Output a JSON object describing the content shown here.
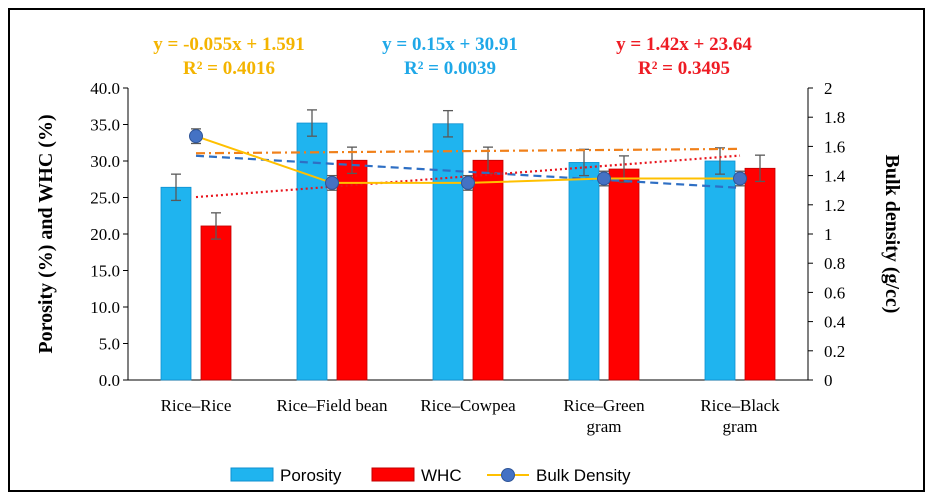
{
  "chart_data": {
    "type": "bar",
    "categories": [
      [
        "Rice–Rice"
      ],
      [
        "Rice–Field bean"
      ],
      [
        "Rice–Cowpea"
      ],
      [
        "Rice–Green",
        "gram"
      ],
      [
        "Rice–Black",
        "gram"
      ]
    ],
    "series": [
      {
        "name": "Porosity",
        "axis": "left",
        "color": "#1fb4ef",
        "values": [
          26.4,
          35.2,
          35.1,
          29.8,
          30.0
        ],
        "errors": [
          1.8,
          1.8,
          1.8,
          1.8,
          1.8
        ]
      },
      {
        "name": "WHC",
        "axis": "left",
        "color": "#ff0000",
        "values": [
          21.1,
          30.1,
          30.1,
          28.9,
          29.0
        ],
        "errors": [
          1.8,
          1.8,
          1.8,
          1.8,
          1.8
        ]
      }
    ],
    "line_series": {
      "name": "Bulk Density",
      "axis": "right",
      "line_color": "#ffc000",
      "marker_color": "#4472c4",
      "values": [
        1.67,
        1.35,
        1.35,
        1.38,
        1.38
      ],
      "errors": [
        0.05,
        0.05,
        0.05,
        0.05,
        0.05
      ]
    },
    "trendlines": [
      {
        "series": "Bulk Density",
        "axis": "right",
        "color": "#2e6fc4",
        "style": "dashed",
        "slope": -0.055,
        "intercept": 1.591,
        "equation": "y = -0.055x + 1.591",
        "r2": "R² = 0.4016",
        "label_color": "#f4b400"
      },
      {
        "series": "Porosity",
        "axis": "left",
        "color": "#f0801a",
        "style": "dashdot",
        "slope": 0.15,
        "intercept": 30.91,
        "equation": "y = 0.15x + 30.91",
        "r2": "R² = 0.0039",
        "label_color": "#1fa8e8"
      },
      {
        "series": "WHC",
        "axis": "left",
        "color": "#e8141c",
        "style": "dotted",
        "slope": 1.42,
        "intercept": 23.64,
        "equation": "y = 1.42x + 23.64",
        "r2": "R² = 0.3495",
        "label_color": "#ee1c24"
      }
    ],
    "y_left": {
      "label": "Porosity (%) and WHC (%)",
      "min": 0,
      "max": 40,
      "step": 5,
      "ticks": [
        "0.0",
        "5.0",
        "10.0",
        "15.0",
        "20.0",
        "25.0",
        "30.0",
        "35.0",
        "40.0"
      ]
    },
    "y_right": {
      "label": "Bulk density (g/cc)",
      "min": 0,
      "max": 2,
      "step": 0.2,
      "ticks": [
        "0",
        "0.2",
        "0.4",
        "0.6",
        "0.8",
        "1",
        "1.2",
        "1.4",
        "1.6",
        "1.8",
        "2"
      ]
    },
    "legend": {
      "position": "bottom",
      "items": [
        "Porosity",
        "WHC",
        "Bulk Density"
      ]
    },
    "grid": false
  }
}
